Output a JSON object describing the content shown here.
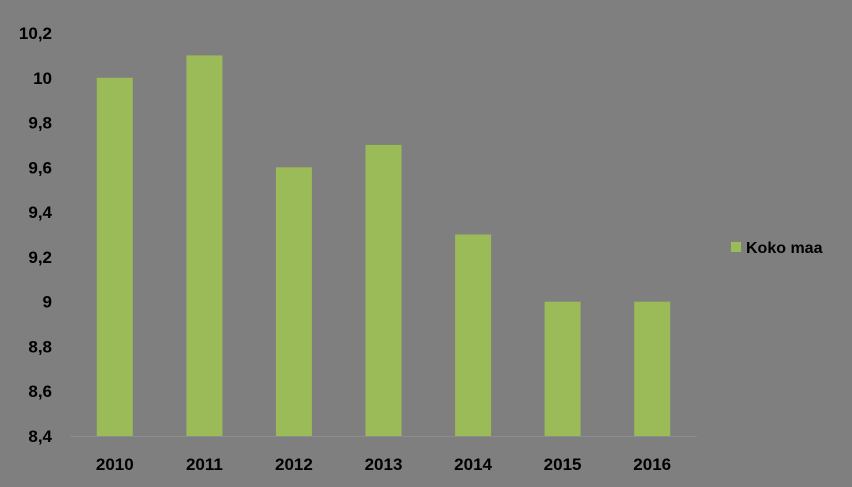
{
  "chart_data": {
    "type": "bar",
    "categories": [
      "2010",
      "2011",
      "2012",
      "2013",
      "2014",
      "2015",
      "2016"
    ],
    "series": [
      {
        "name": "Koko maa",
        "values": [
          10.0,
          10.1,
          9.6,
          9.7,
          9.3,
          9.0,
          9.0
        ],
        "color": "#9bbb59"
      }
    ],
    "y_ticks": [
      "8,4",
      "8,6",
      "8,8",
      "9",
      "9,2",
      "9,4",
      "9,6",
      "9,8",
      "10",
      "10,2"
    ],
    "ylim": [
      8.4,
      10.2
    ],
    "grid": false,
    "legend_position": "right",
    "background_color": "#7f7f7f",
    "axis_color": "#8c8c8c"
  }
}
